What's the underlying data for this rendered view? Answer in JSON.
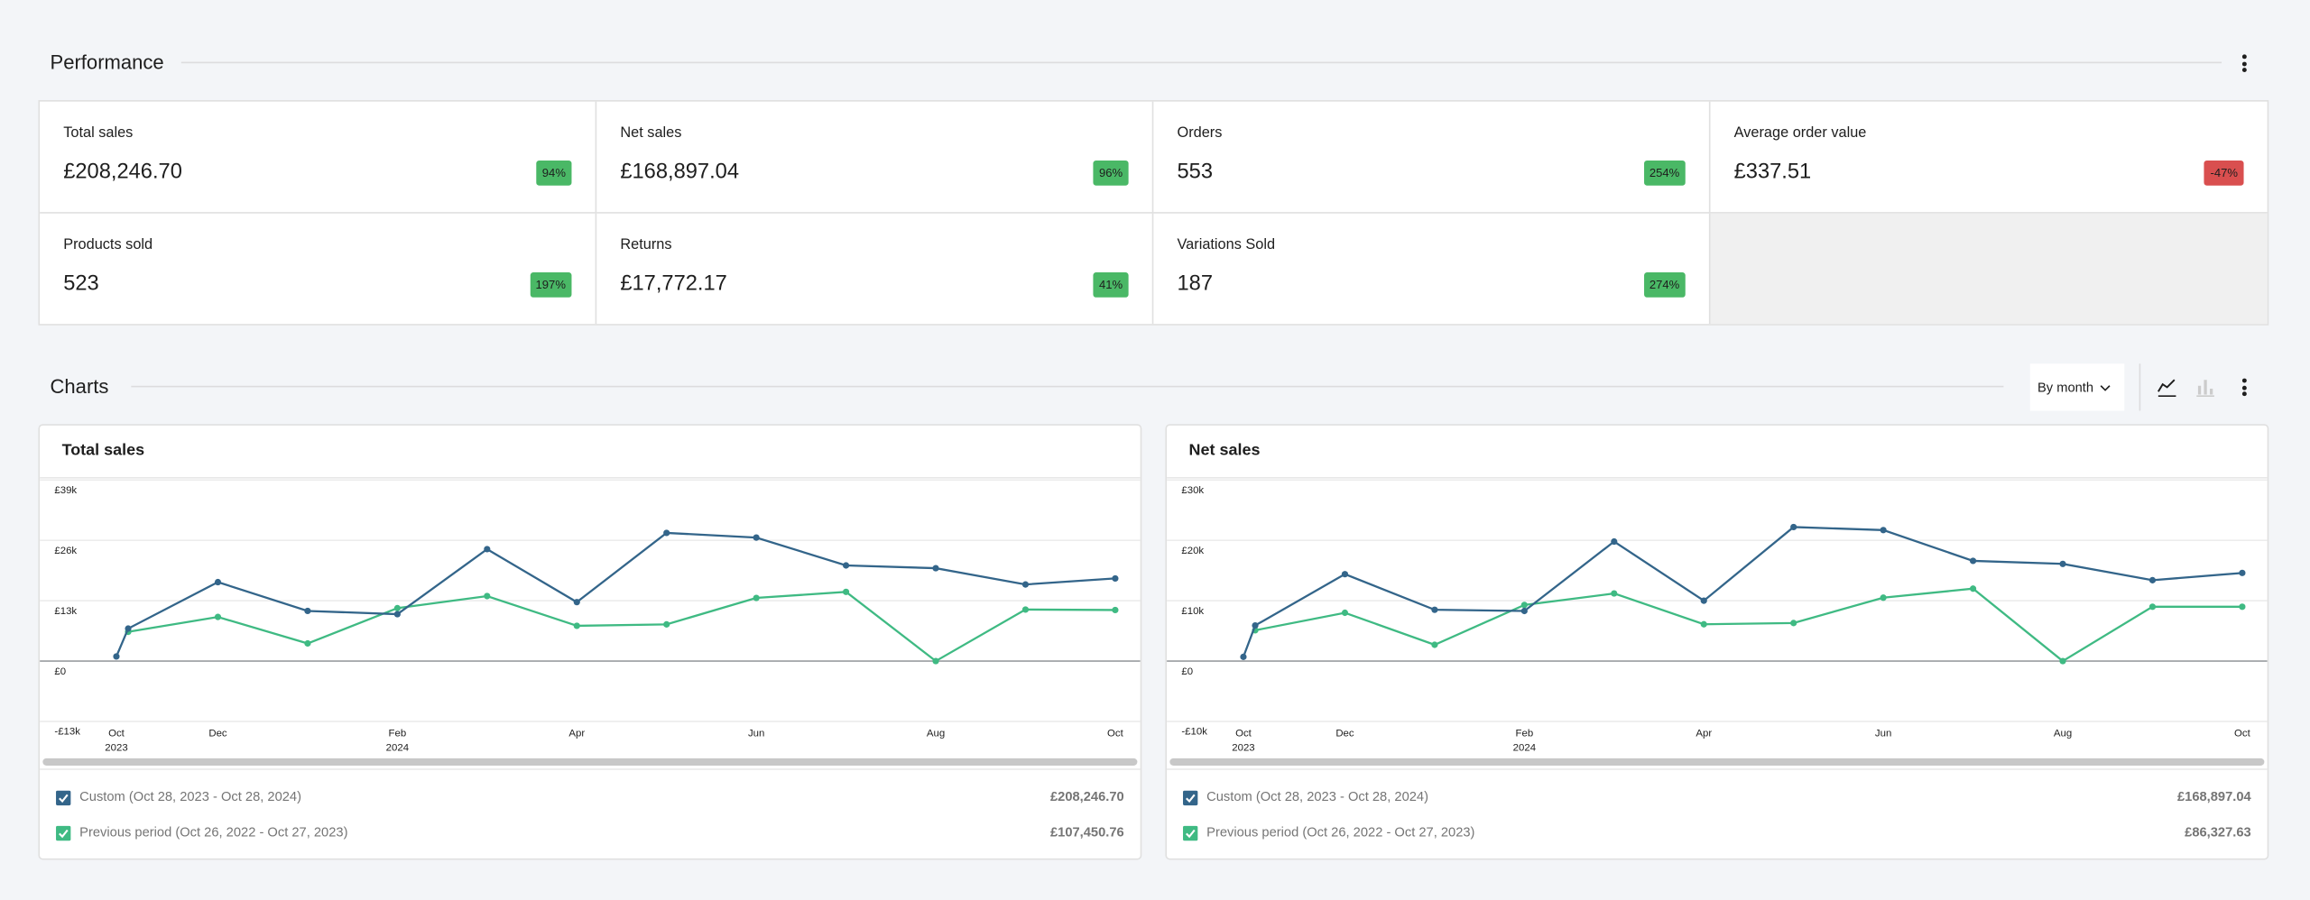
{
  "performance": {
    "title": "Performance",
    "tiles": [
      {
        "label": "Total sales",
        "value": "£208,246.70",
        "change": "94%",
        "color": "#4ab866"
      },
      {
        "label": "Net sales",
        "value": "£168,897.04",
        "change": "96%",
        "color": "#4ab866"
      },
      {
        "label": "Orders",
        "value": "553",
        "change": "254%",
        "color": "#4ab866"
      },
      {
        "label": "Average order value",
        "value": "£337.51",
        "change": "-47%",
        "color": "#d94f4f"
      },
      {
        "label": "Products sold",
        "value": "523",
        "change": "197%",
        "color": "#4ab866"
      },
      {
        "label": "Returns",
        "value": "£17,772.17",
        "change": "41%",
        "color": "#4ab866"
      },
      {
        "label": "Variations Sold",
        "value": "187",
        "change": "274%",
        "color": "#4ab866"
      }
    ]
  },
  "charts_section": {
    "title": "Charts",
    "interval": "By month"
  },
  "chart_data": [
    {
      "type": "line",
      "title": "Total sales",
      "categories": [
        "Oct",
        null,
        "Dec",
        null,
        "Feb",
        null,
        "Apr",
        null,
        "Jun",
        null,
        "Aug",
        null,
        "Oct"
      ],
      "category_sublabels": [
        "2023",
        null,
        null,
        null,
        "2024",
        null,
        null,
        null,
        null,
        null,
        null,
        null,
        null
      ],
      "ylim": [
        -13000,
        39000
      ],
      "yticks": [
        {
          "value": -13000,
          "label": "-£13k"
        },
        {
          "value": 0,
          "label": "£0"
        },
        {
          "value": 13000,
          "label": "£13k"
        },
        {
          "value": 26000,
          "label": "£26k"
        },
        {
          "value": 39000,
          "label": "£39k"
        }
      ],
      "grid": true,
      "series": [
        {
          "name": "Custom (Oct 28, 2023 - Oct 28, 2024)",
          "color": "#33658a",
          "total": "£208,246.70",
          "values": [
            1000,
            7000,
            17000,
            10800,
            10100,
            24100,
            12700,
            27600,
            26600,
            20600,
            20000,
            16500,
            17800
          ]
        },
        {
          "name": "Previous period (Oct 26, 2022 - Oct 27, 2023)",
          "color": "#3fba83",
          "total": "£107,450.76",
          "values": [
            null,
            6300,
            9500,
            3800,
            11400,
            14000,
            7600,
            7900,
            13600,
            14900,
            0,
            11100,
            11000
          ]
        }
      ]
    },
    {
      "type": "line",
      "title": "Net sales",
      "categories": [
        "Oct",
        null,
        "Dec",
        null,
        "Feb",
        null,
        "Apr",
        null,
        "Jun",
        null,
        "Aug",
        null,
        "Oct"
      ],
      "category_sublabels": [
        "2023",
        null,
        null,
        null,
        "2024",
        null,
        null,
        null,
        null,
        null,
        null,
        null,
        null
      ],
      "ylim": [
        -10000,
        30000
      ],
      "yticks": [
        {
          "value": -10000,
          "label": "-£10k"
        },
        {
          "value": 0,
          "label": "£0"
        },
        {
          "value": 10000,
          "label": "£10k"
        },
        {
          "value": 20000,
          "label": "£20k"
        },
        {
          "value": 30000,
          "label": "£30k"
        }
      ],
      "grid": true,
      "series": [
        {
          "name": "Custom (Oct 28, 2023 - Oct 28, 2024)",
          "color": "#33658a",
          "total": "£168,897.04",
          "values": [
            700,
            5900,
            14400,
            8500,
            8300,
            19800,
            10000,
            22200,
            21700,
            16600,
            16100,
            13400,
            14600
          ]
        },
        {
          "name": "Previous period (Oct 26, 2022 - Oct 27, 2023)",
          "color": "#3fba83",
          "total": "£86,327.63",
          "values": [
            null,
            5100,
            8000,
            2700,
            9300,
            11200,
            6100,
            6300,
            10500,
            12000,
            0,
            9000,
            9000
          ]
        }
      ]
    }
  ]
}
